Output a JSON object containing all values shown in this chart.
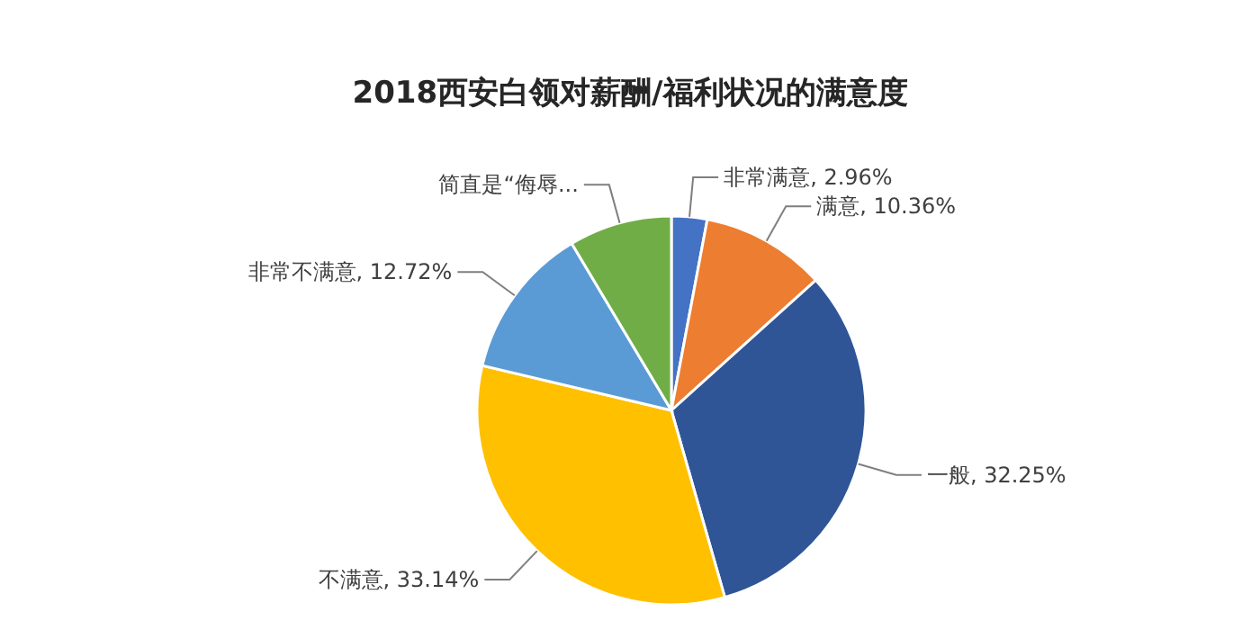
{
  "chart_data": {
    "type": "pie",
    "title": "2018西安白领对薪酬/福利状况的满意度",
    "categories": [
      "非常满意",
      "满意",
      "一般",
      "不满意",
      "非常不满意",
      "简直是“侮辱..."
    ],
    "values": [
      2.96,
      10.36,
      32.25,
      33.14,
      12.72,
      8.57
    ],
    "value_labels": [
      "2.96%",
      "10.36%",
      "32.25%",
      "33.14%",
      "12.72%",
      null
    ],
    "colors": [
      "#4472c4",
      "#ed7d31",
      "#2f5597",
      "#ffc000",
      "#5b9bd5",
      "#70ad47"
    ],
    "legend": false
  }
}
